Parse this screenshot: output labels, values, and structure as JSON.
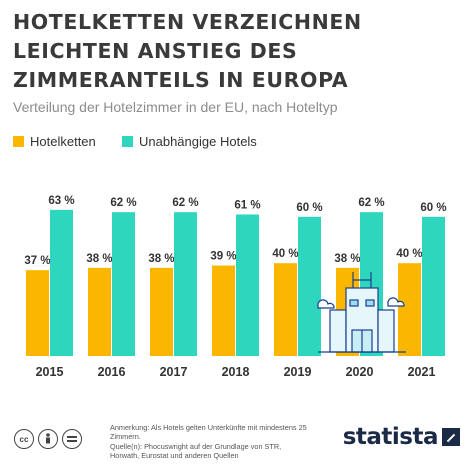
{
  "header": {
    "title": "HOTELKETTEN VERZEICHNEN LEICHTEN ANSTIEG DES ZIMMERANTEILS IN EUROPA",
    "subtitle": "Verteilung der Hotelzimmer in der EU, nach Hoteltyp"
  },
  "legend": [
    {
      "label": "Hotelketten",
      "color": "#fbb600"
    },
    {
      "label": "Unabhängige Hotels",
      "color": "#2fd6be"
    }
  ],
  "chart_data": {
    "type": "bar",
    "title": "HOTELKETTEN VERZEICHNEN LEICHTEN ANSTIEG DES ZIMMERANTEILS IN EUROPA",
    "subtitle": "Verteilung der Hotelzimmer in der EU, nach Hoteltyp",
    "categories": [
      "2015",
      "2016",
      "2017",
      "2018",
      "2019",
      "2020",
      "2021"
    ],
    "series": [
      {
        "name": "Hotelketten",
        "color": "#fbb600",
        "values": [
          37,
          38,
          38,
          39,
          40,
          38,
          40
        ]
      },
      {
        "name": "Unabhängige Hotels",
        "color": "#2fd6be",
        "values": [
          63,
          62,
          62,
          61,
          60,
          62,
          60
        ]
      }
    ],
    "value_suffix": " %",
    "ylim": [
      0,
      63
    ],
    "grid": false,
    "legend_position": "top-left"
  },
  "footer": {
    "license_icons": [
      "cc",
      "by",
      "nd"
    ],
    "note": "Anmerkung: Als Hotels gelten Unterkünfte mit mindestens 25 Zimmern.",
    "source": "Quelle(n): Phocuswright auf der Grundlage von STR, Horwath, Eurostat und anderen Quellen",
    "brand": "statista"
  }
}
